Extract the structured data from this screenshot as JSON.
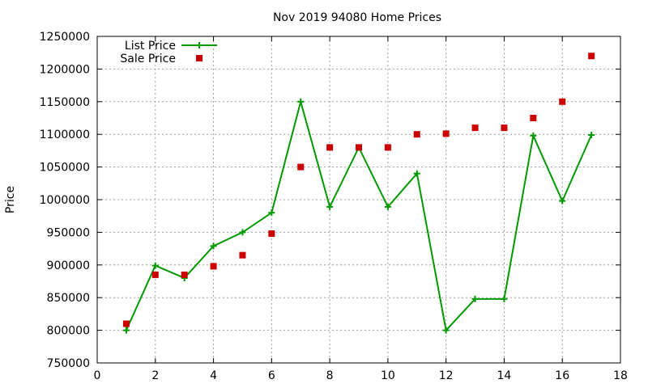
{
  "chart_data": {
    "type": "line",
    "title": "Nov 2019 94080 Home Prices",
    "xlabel": "",
    "ylabel": "Price",
    "xlim": [
      0,
      18
    ],
    "ylim": [
      750000,
      1250000
    ],
    "xticks": [
      0,
      2,
      4,
      6,
      8,
      10,
      12,
      14,
      16,
      18
    ],
    "yticks": [
      750000,
      800000,
      850000,
      900000,
      950000,
      1000000,
      1050000,
      1100000,
      1150000,
      1200000,
      1250000
    ],
    "grid": true,
    "legend_position": "top-left",
    "series": [
      {
        "name": "List Price",
        "style": "line-plus",
        "color": "#009900",
        "x": [
          1,
          2,
          3,
          4,
          5,
          6,
          7,
          8,
          9,
          10,
          11,
          12,
          13,
          14,
          15,
          16,
          17
        ],
        "y": [
          800000,
          899000,
          880000,
          929000,
          950000,
          980000,
          1150000,
          989000,
          1080000,
          989000,
          1040000,
          800000,
          848000,
          848000,
          1098000,
          998000,
          1099000
        ]
      },
      {
        "name": "Sale Price",
        "style": "square",
        "color": "#cc0000",
        "x": [
          1,
          2,
          3,
          4,
          5,
          6,
          7,
          8,
          9,
          10,
          11,
          12,
          13,
          14,
          15,
          16,
          17
        ],
        "y": [
          810000,
          885000,
          885000,
          898000,
          915000,
          948000,
          1050000,
          1080000,
          1080000,
          1080000,
          1100000,
          1101000,
          1110000,
          1110000,
          1125000,
          1150000,
          1220000
        ]
      }
    ]
  }
}
